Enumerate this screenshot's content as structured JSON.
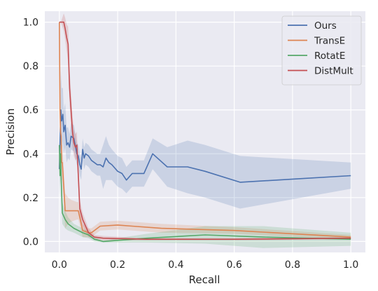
{
  "chart_data": {
    "type": "line",
    "title": "",
    "xlabel": "Recall",
    "ylabel": "Precision",
    "xlim": [
      -0.05,
      1.05
    ],
    "ylim": [
      -0.05,
      1.05
    ],
    "xticks": [
      0.0,
      0.2,
      0.4,
      0.6,
      0.8,
      1.0
    ],
    "yticks": [
      0.0,
      0.2,
      0.4,
      0.6,
      0.8,
      1.0
    ],
    "xtick_labels": [
      "0.0",
      "0.2",
      "0.4",
      "0.6",
      "0.8",
      "1.0"
    ],
    "ytick_labels": [
      "0.0",
      "0.2",
      "0.4",
      "0.6",
      "0.8",
      "1.0"
    ],
    "grid": true,
    "background": "#eaeaf2",
    "legend_position": "top-right",
    "series": [
      {
        "name": "Ours",
        "color": "#4c72b0",
        "x": [
          0.0,
          0.005,
          0.008,
          0.012,
          0.015,
          0.02,
          0.025,
          0.03,
          0.035,
          0.04,
          0.05,
          0.06,
          0.065,
          0.07,
          0.075,
          0.08,
          0.085,
          0.09,
          0.1,
          0.11,
          0.12,
          0.13,
          0.14,
          0.15,
          0.16,
          0.17,
          0.18,
          0.2,
          0.215,
          0.23,
          0.25,
          0.26,
          0.29,
          0.32,
          0.37,
          0.44,
          0.5,
          0.62,
          1.0
        ],
        "y": [
          0.33,
          0.6,
          0.55,
          0.58,
          0.5,
          0.53,
          0.44,
          0.45,
          0.43,
          0.48,
          0.47,
          0.4,
          0.39,
          0.35,
          0.33,
          0.42,
          0.38,
          0.4,
          0.39,
          0.37,
          0.36,
          0.35,
          0.35,
          0.34,
          0.38,
          0.36,
          0.35,
          0.32,
          0.31,
          0.28,
          0.31,
          0.31,
          0.31,
          0.4,
          0.34,
          0.34,
          0.32,
          0.27,
          0.3
        ],
        "band": [
          0.12,
          0.18,
          0.15,
          0.12,
          0.1,
          0.1,
          0.08,
          0.07,
          0.06,
          0.06,
          0.06,
          0.05,
          0.05,
          0.05,
          0.05,
          0.05,
          0.05,
          0.05,
          0.05,
          0.05,
          0.05,
          0.05,
          0.05,
          0.1,
          0.1,
          0.08,
          0.07,
          0.07,
          0.07,
          0.06,
          0.06,
          0.06,
          0.06,
          0.07,
          0.09,
          0.12,
          0.12,
          0.12,
          0.06
        ]
      },
      {
        "name": "TransE",
        "color": "#dd8452",
        "x": [
          0.0,
          0.002,
          0.004,
          0.006,
          0.008,
          0.01,
          0.02,
          0.03,
          0.04,
          0.06,
          0.065,
          0.08,
          0.1,
          0.11,
          0.12,
          0.14,
          0.2,
          0.25,
          0.35,
          0.6,
          1.0
        ],
        "y": [
          1.0,
          0.6,
          0.5,
          0.48,
          0.36,
          0.36,
          0.14,
          0.14,
          0.14,
          0.14,
          0.14,
          0.05,
          0.04,
          0.04,
          0.05,
          0.07,
          0.075,
          0.07,
          0.06,
          0.05,
          0.02
        ],
        "band": [
          0.0,
          0.1,
          0.1,
          0.08,
          0.08,
          0.08,
          0.08,
          0.06,
          0.05,
          0.04,
          0.04,
          0.03,
          0.02,
          0.02,
          0.02,
          0.02,
          0.02,
          0.02,
          0.02,
          0.015,
          0.01
        ]
      },
      {
        "name": "RotatE",
        "color": "#55a868",
        "x": [
          0.0,
          0.002,
          0.004,
          0.006,
          0.01,
          0.02,
          0.03,
          0.05,
          0.08,
          0.1,
          0.12,
          0.15,
          0.2,
          0.3,
          0.5,
          0.7,
          1.0
        ],
        "y": [
          0.44,
          0.3,
          0.4,
          0.3,
          0.13,
          0.1,
          0.08,
          0.06,
          0.04,
          0.03,
          0.01,
          0.0,
          0.005,
          0.015,
          0.03,
          0.02,
          0.01
        ],
        "band": [
          0.05,
          0.1,
          0.08,
          0.08,
          0.05,
          0.04,
          0.03,
          0.02,
          0.02,
          0.015,
          0.01,
          0.005,
          0.01,
          0.02,
          0.04,
          0.05,
          0.03
        ]
      },
      {
        "name": "DistMult",
        "color": "#c44e52",
        "x": [
          0.0,
          0.005,
          0.01,
          0.015,
          0.02,
          0.025,
          0.03,
          0.035,
          0.04,
          0.045,
          0.05,
          0.055,
          0.06,
          0.065,
          0.07,
          0.08,
          0.1,
          0.12,
          0.15,
          0.3,
          0.6,
          1.0
        ],
        "y": [
          1.0,
          1.0,
          1.0,
          1.0,
          0.97,
          0.93,
          0.9,
          0.7,
          0.6,
          0.5,
          0.45,
          0.43,
          0.44,
          0.3,
          0.15,
          0.1,
          0.04,
          0.02,
          0.015,
          0.01,
          0.01,
          0.015
        ],
        "band": [
          0.0,
          0.0,
          0.02,
          0.04,
          0.05,
          0.06,
          0.08,
          0.08,
          0.08,
          0.07,
          0.06,
          0.06,
          0.06,
          0.05,
          0.04,
          0.03,
          0.02,
          0.01,
          0.01,
          0.005,
          0.005,
          0.005
        ]
      }
    ]
  }
}
